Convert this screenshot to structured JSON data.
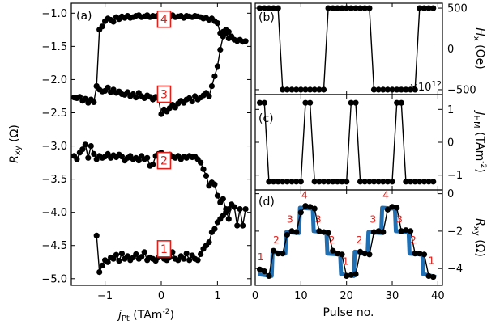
{
  "colors": {
    "annotation": "#e0201b",
    "fit_line": "#1f6fb4",
    "markers": "#000000"
  },
  "chart_data": [
    {
      "panel": "(a)",
      "type": "scatter",
      "xlabel_main": "j",
      "xlabel_sub": "Pt",
      "xlabel_unit": "(TAm",
      "xlabel_exp": "-2",
      "ylabel_main": "R",
      "ylabel_sub": "xy",
      "ylabel_unit": "(Ω)",
      "xlim": [
        -1.6,
        1.6
      ],
      "ylim": [
        -5.1,
        -0.85
      ],
      "xticks": [
        -1,
        0,
        1
      ],
      "yticks": [
        -5.0,
        -4.5,
        -4.0,
        -3.5,
        -3.0,
        -2.5,
        -2.0,
        -1.5,
        -1.0
      ],
      "ytick_labels": [
        "−5.0",
        "−4.5",
        "−4.0",
        "−3.5",
        "−3.0",
        "−2.5",
        "−2.0",
        "−1.5",
        "−1.0"
      ],
      "xtick_labels": [
        "−1",
        "0",
        "1"
      ],
      "boxes": [
        {
          "label": "4",
          "x": 0.05,
          "y": -1.09
        },
        {
          "label": "3",
          "x": 0.05,
          "y": -2.22
        },
        {
          "label": "2",
          "x": 0.05,
          "y": -3.22
        },
        {
          "label": "1",
          "x": 0.05,
          "y": -4.55
        }
      ],
      "series": [
        {
          "x": [
            -1.55,
            -1.5,
            -1.45,
            -1.4,
            -1.35,
            -1.3,
            -1.25,
            -1.2,
            -1.15,
            -1.1,
            -1.05,
            -1.0,
            -0.95,
            -0.9,
            -0.85,
            -0.8,
            -0.75,
            -0.7,
            -0.65,
            -0.6,
            -0.55,
            -0.5,
            -0.45,
            -0.4,
            -0.35,
            -0.3,
            -0.25,
            -0.2,
            -0.15,
            -0.1,
            -0.05,
            0.0,
            0.05,
            0.1,
            0.15,
            0.2,
            0.25,
            0.3,
            0.35,
            0.4,
            0.45,
            0.5,
            0.55,
            0.6,
            0.65,
            0.7,
            0.75,
            0.8,
            0.85,
            0.9,
            0.95,
            1.0,
            1.05,
            1.1,
            1.15,
            1.2,
            1.25,
            1.3,
            1.35,
            1.4,
            1.45,
            1.5
          ],
          "y": [
            -2.27,
            -2.28,
            -2.26,
            -2.32,
            -2.29,
            -2.35,
            -2.3,
            -2.34,
            -2.1,
            -1.25,
            -1.2,
            -1.12,
            -1.08,
            -1.1,
            -1.13,
            -1.06,
            -1.09,
            -1.05,
            -1.07,
            -1.04,
            -1.07,
            -1.06,
            -1.04,
            -1.03,
            -1.06,
            -1.05,
            -1.03,
            -1.06,
            -1.04,
            -1.05,
            -1.03,
            -1.07,
            -1.04,
            -1.06,
            -1.05,
            -1.03,
            -1.06,
            -1.05,
            -1.04,
            -1.07,
            -1.04,
            -1.05,
            -1.06,
            -1.04,
            -1.05,
            -1.06,
            -1.08,
            -1.07,
            -1.1,
            -1.08,
            -1.12,
            -1.15,
            -1.3,
            -1.28,
            -1.25,
            -1.38,
            -1.35,
            -1.4,
            -1.42,
            -1.4,
            -1.43,
            -1.42
          ]
        },
        {
          "x": [
            -1.15,
            -1.1,
            -1.05,
            -1.0,
            -0.95,
            -0.9,
            -0.85,
            -0.8,
            -0.75,
            -0.7,
            -0.65,
            -0.6,
            -0.55,
            -0.5,
            -0.45,
            -0.4,
            -0.35,
            -0.3,
            -0.25,
            -0.2,
            -0.15,
            -0.1,
            -0.05,
            0.0,
            0.05,
            0.1,
            0.15,
            0.2,
            0.25,
            0.3,
            0.35,
            0.4,
            0.45,
            0.5,
            0.55,
            0.6,
            0.65,
            0.7,
            0.75,
            0.8,
            0.85,
            0.9,
            0.95,
            1.0,
            1.05,
            1.1,
            1.15,
            1.2
          ],
          "y": [
            -2.1,
            -2.15,
            -2.18,
            -2.17,
            -2.12,
            -2.19,
            -2.15,
            -2.2,
            -2.18,
            -2.22,
            -2.23,
            -2.19,
            -2.25,
            -2.22,
            -2.27,
            -2.2,
            -2.25,
            -2.28,
            -2.24,
            -2.26,
            -2.3,
            -2.26,
            -2.28,
            -2.52,
            -2.45,
            -2.48,
            -2.43,
            -2.38,
            -2.42,
            -2.36,
            -2.32,
            -2.35,
            -2.3,
            -2.28,
            -2.33,
            -2.25,
            -2.3,
            -2.27,
            -2.24,
            -2.2,
            -2.25,
            -2.1,
            -1.95,
            -1.8,
            -1.55,
            -1.35,
            -1.3,
            -1.28
          ]
        },
        {
          "x": [
            -1.55,
            -1.5,
            -1.45,
            -1.4,
            -1.35,
            -1.3,
            -1.25,
            -1.2,
            -1.15,
            -1.1,
            -1.05,
            -1.0,
            -0.95,
            -0.9,
            -0.85,
            -0.8,
            -0.75,
            -0.7,
            -0.65,
            -0.6,
            -0.55,
            -0.5,
            -0.45,
            -0.4,
            -0.35,
            -0.3,
            -0.25,
            -0.2,
            -0.15,
            -0.1,
            -0.05,
            0.0,
            0.05,
            0.1,
            0.15,
            0.2,
            0.25,
            0.3,
            0.35,
            0.4,
            0.45,
            0.5,
            0.55,
            0.6,
            0.65,
            0.7,
            0.75,
            0.8,
            0.85,
            0.9,
            0.95,
            1.0,
            1.05,
            1.1,
            1.15,
            1.2,
            1.25,
            1.3,
            1.35,
            1.4,
            1.45,
            1.5
          ],
          "y": [
            -3.15,
            -3.2,
            -3.1,
            -3.05,
            -2.98,
            -3.18,
            -3.0,
            -3.12,
            -3.2,
            -3.15,
            -3.18,
            -3.16,
            -3.12,
            -3.18,
            -3.14,
            -3.17,
            -3.13,
            -3.16,
            -3.22,
            -3.18,
            -3.15,
            -3.2,
            -3.18,
            -3.22,
            -3.15,
            -3.2,
            -3.18,
            -3.3,
            -3.28,
            -3.15,
            -3.12,
            -3.1,
            -3.14,
            -3.2,
            -3.13,
            -3.16,
            -3.18,
            -3.15,
            -3.2,
            -3.16,
            -3.18,
            -3.15,
            -3.17,
            -3.16,
            -3.2,
            -3.25,
            -3.35,
            -3.45,
            -3.6,
            -3.55,
            -3.58,
            -3.75,
            -3.85,
            -3.8,
            -3.95,
            -4.1,
            -3.88,
            -3.92,
            -4.2,
            -3.95,
            -4.2,
            -3.95
          ]
        },
        {
          "x": [
            -1.15,
            -1.1,
            -1.05,
            -1.0,
            -0.95,
            -0.9,
            -0.85,
            -0.8,
            -0.75,
            -0.7,
            -0.65,
            -0.6,
            -0.55,
            -0.5,
            -0.45,
            -0.4,
            -0.35,
            -0.3,
            -0.25,
            -0.2,
            -0.15,
            -0.1,
            -0.05,
            0.0,
            0.05,
            0.1,
            0.15,
            0.2,
            0.25,
            0.3,
            0.35,
            0.4,
            0.45,
            0.5,
            0.55,
            0.6,
            0.65,
            0.7,
            0.75,
            0.8,
            0.85,
            0.9,
            0.95,
            1.0,
            1.05,
            1.1,
            1.15,
            1.2
          ],
          "y": [
            -4.35,
            -4.9,
            -4.8,
            -4.72,
            -4.75,
            -4.68,
            -4.7,
            -4.64,
            -4.73,
            -4.62,
            -4.7,
            -4.66,
            -4.72,
            -4.68,
            -4.63,
            -4.7,
            -4.67,
            -4.6,
            -4.72,
            -4.68,
            -4.7,
            -4.73,
            -4.68,
            -4.65,
            -4.7,
            -4.72,
            -4.68,
            -4.6,
            -4.7,
            -4.72,
            -4.66,
            -4.7,
            -4.62,
            -4.72,
            -4.65,
            -4.7,
            -4.72,
            -4.63,
            -4.55,
            -4.5,
            -4.45,
            -4.3,
            -4.25,
            -4.15,
            -4.1,
            -4.05,
            -4.0,
            -3.95
          ]
        }
      ]
    },
    {
      "panel": "(b)",
      "type": "line",
      "ylabel_main": "H",
      "ylabel_sub": "x",
      "ylabel_unit": "(Oe)",
      "xlim": [
        0,
        41
      ],
      "ylim": [
        -560,
        560
      ],
      "yticks": [
        -500,
        0,
        500
      ],
      "ytick_labels": [
        "−500",
        "0",
        "500"
      ],
      "x": [
        1,
        2,
        3,
        4,
        5,
        6,
        7,
        8,
        9,
        10,
        11,
        12,
        13,
        14,
        15,
        16,
        17,
        18,
        19,
        20,
        21,
        22,
        23,
        24,
        25,
        26,
        27,
        28,
        29,
        30,
        31,
        32,
        33,
        34,
        35,
        36,
        37,
        38,
        39
      ],
      "y": [
        500,
        500,
        500,
        500,
        500,
        -500,
        -500,
        -500,
        -500,
        -500,
        -500,
        -500,
        -500,
        -500,
        -500,
        500,
        500,
        500,
        500,
        500,
        500,
        500,
        500,
        500,
        500,
        -500,
        -500,
        -500,
        -500,
        -500,
        -500,
        -500,
        -500,
        -500,
        -500,
        500,
        500,
        500,
        500
      ]
    },
    {
      "panel": "(c)",
      "type": "line",
      "ylabel_main": "J",
      "ylabel_sub": "HM",
      "ylabel_unit": "(TAm",
      "ylabel_exp": "-2",
      "ylabel_close": ")",
      "offset_text": "×10",
      "offset_exp": "12",
      "xlim": [
        0,
        41
      ],
      "ylim": [
        -1.45,
        1.45
      ],
      "yticks": [
        -1,
        0,
        1
      ],
      "ytick_labels": [
        "−1",
        "0",
        "1"
      ],
      "x": [
        1,
        2,
        3,
        4,
        5,
        6,
        7,
        8,
        9,
        10,
        11,
        12,
        13,
        14,
        15,
        16,
        17,
        18,
        19,
        20,
        21,
        22,
        23,
        24,
        25,
        26,
        27,
        28,
        29,
        30,
        31,
        32,
        33,
        34,
        35,
        36,
        37,
        38,
        39
      ],
      "y": [
        1.2,
        1.2,
        -1.2,
        -1.2,
        -1.2,
        -1.2,
        -1.2,
        -1.2,
        -1.2,
        -1.2,
        1.2,
        1.2,
        -1.2,
        -1.2,
        -1.2,
        -1.2,
        -1.2,
        -1.2,
        -1.2,
        -1.2,
        1.2,
        1.2,
        -1.2,
        -1.2,
        -1.2,
        -1.2,
        -1.2,
        -1.2,
        -1.2,
        -1.2,
        1.2,
        1.2,
        -1.2,
        -1.2,
        -1.2,
        -1.2,
        -1.2,
        -1.2,
        -1.2
      ]
    },
    {
      "panel": "(d)",
      "type": "line",
      "xlabel": "Pulse no.",
      "ylabel_main": "R",
      "ylabel_sub": "xy",
      "ylabel_unit": "(Ω)",
      "xlim": [
        0,
        41
      ],
      "ylim": [
        -4.9,
        0.2
      ],
      "xticks": [
        0,
        10,
        20,
        30,
        40
      ],
      "xtick_labels": [
        "0",
        "10",
        "20",
        "30",
        "40"
      ],
      "yticks": [
        -4,
        -2,
        0
      ],
      "ytick_labels": [
        "−4",
        "−2",
        "0"
      ],
      "x": [
        1,
        2,
        3,
        4,
        5,
        6,
        7,
        8,
        9,
        10,
        11,
        12,
        13,
        14,
        15,
        16,
        17,
        18,
        19,
        20,
        21,
        22,
        23,
        24,
        25,
        26,
        27,
        28,
        29,
        30,
        31,
        32,
        33,
        34,
        35,
        36,
        37,
        38,
        39
      ],
      "y": [
        -4.05,
        -4.15,
        -4.4,
        -3.05,
        -3.2,
        -3.2,
        -2.2,
        -2.0,
        -2.05,
        -1.0,
        -0.65,
        -0.7,
        -0.8,
        -2.0,
        -2.05,
        -2.1,
        -3.05,
        -3.2,
        -3.25,
        -4.4,
        -4.35,
        -4.3,
        -3.1,
        -3.2,
        -3.25,
        -2.05,
        -2.0,
        -2.05,
        -0.85,
        -0.7,
        -0.75,
        -2.0,
        -1.95,
        -2.0,
        -3.2,
        -3.2,
        -3.25,
        -4.4,
        -4.45
      ],
      "fit_x": [
        0.6,
        3.6,
        3.8,
        6.6,
        6.8,
        9.6,
        9.8,
        12.6,
        12.8,
        15.6,
        15.8,
        18.6,
        18.8,
        21.6,
        21.8,
        24.6,
        24.8,
        27.6,
        27.8,
        30.6,
        30.8,
        33.6,
        33.8,
        36.6,
        36.8,
        39.6
      ],
      "fit_y": [
        -4.3,
        -4.4,
        -3.1,
        -3.2,
        -2.05,
        -2.1,
        -0.75,
        -0.8,
        -2.0,
        -2.05,
        -3.2,
        -3.25,
        -4.3,
        -4.4,
        -3.1,
        -3.2,
        -2.05,
        -2.1,
        -0.75,
        -0.8,
        -2.0,
        -2.05,
        -3.2,
        -3.25,
        -4.3,
        -4.45
      ],
      "annotations": [
        {
          "text": "1",
          "x": 1.2,
          "y": -3.55
        },
        {
          "text": "2",
          "x": 4.6,
          "y": -2.65
        },
        {
          "text": "3",
          "x": 7.6,
          "y": -1.55
        },
        {
          "text": "4",
          "x": 10.8,
          "y": -0.25
        },
        {
          "text": "3",
          "x": 13.8,
          "y": -1.55
        },
        {
          "text": "2",
          "x": 16.8,
          "y": -2.65
        },
        {
          "text": "1",
          "x": 19.8,
          "y": -3.8
        },
        {
          "text": "2",
          "x": 22.8,
          "y": -2.65
        },
        {
          "text": "3",
          "x": 25.8,
          "y": -1.55
        },
        {
          "text": "4",
          "x": 28.6,
          "y": -0.25
        },
        {
          "text": "3",
          "x": 31.6,
          "y": -1.55
        },
        {
          "text": "2",
          "x": 34.6,
          "y": -2.65
        },
        {
          "text": "1",
          "x": 38.6,
          "y": -3.75
        }
      ]
    }
  ]
}
